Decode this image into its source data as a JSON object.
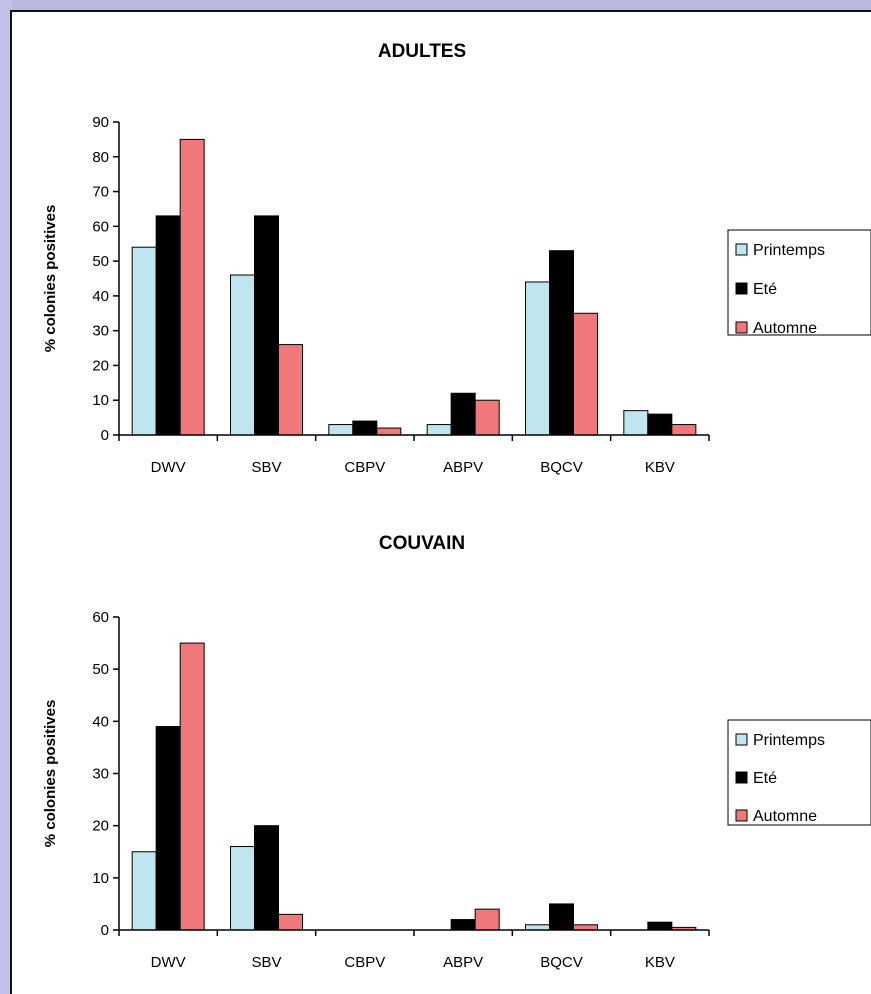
{
  "chart_data": [
    {
      "type": "bar",
      "title": "ADULTES",
      "xlabel": "",
      "ylabel": "% colonies positives",
      "ylim": [
        0,
        90
      ],
      "yticks": [
        0,
        10,
        20,
        30,
        40,
        50,
        60,
        70,
        80,
        90
      ],
      "categories": [
        "DWV",
        "SBV",
        "CBPV",
        "ABPV",
        "BQCV",
        "KBV"
      ],
      "series": [
        {
          "name": "Printemps",
          "color": "#bfe6ee",
          "values": [
            54,
            46,
            3,
            3,
            44,
            7
          ]
        },
        {
          "name": "Eté",
          "color": "#000000",
          "values": [
            63,
            63,
            4,
            12,
            53,
            6
          ]
        },
        {
          "name": "Automne",
          "color": "#f07878",
          "values": [
            85,
            26,
            2,
            10,
            35,
            3
          ]
        }
      ],
      "grid": false,
      "legend": "right"
    },
    {
      "type": "bar",
      "title": "COUVAIN",
      "xlabel": "",
      "ylabel": "% colonies positives",
      "ylim": [
        0,
        60
      ],
      "yticks": [
        0,
        10,
        20,
        30,
        40,
        50,
        60
      ],
      "categories": [
        "DWV",
        "SBV",
        "CBPV",
        "ABPV",
        "BQCV",
        "KBV"
      ],
      "series": [
        {
          "name": "Printemps",
          "color": "#bfe6ee",
          "values": [
            15,
            16,
            0,
            0,
            1,
            0
          ]
        },
        {
          "name": "Eté",
          "color": "#000000",
          "values": [
            39,
            20,
            0,
            2,
            5,
            1.5
          ]
        },
        {
          "name": "Automne",
          "color": "#f07878",
          "values": [
            55,
            3,
            0,
            4,
            1,
            0.5
          ]
        }
      ],
      "grid": false,
      "legend": "right"
    }
  ]
}
